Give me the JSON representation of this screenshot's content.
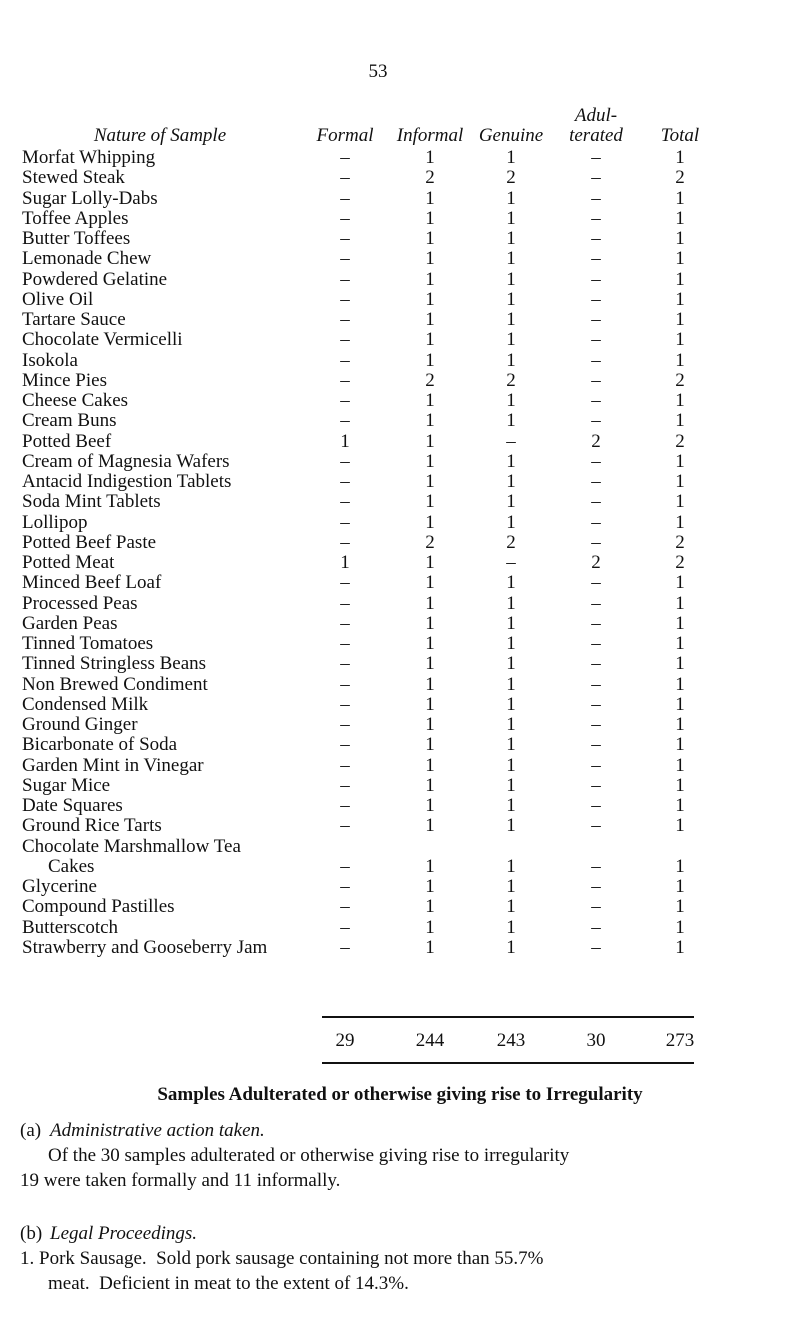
{
  "page_number": "53",
  "table": {
    "headers": [
      "Nature of Sample",
      "Formal",
      "Informal",
      "Genuine",
      [
        "Adul-",
        "terated"
      ],
      "Total"
    ],
    "rows": [
      [
        "Morfat Whipping",
        "–",
        1,
        1,
        "–",
        1
      ],
      [
        "Stewed Steak",
        "–",
        2,
        2,
        "–",
        2
      ],
      [
        "Sugar Lolly-Dabs",
        "–",
        1,
        1,
        "–",
        1
      ],
      [
        "Toffee Apples",
        "–",
        1,
        1,
        "–",
        1
      ],
      [
        "Butter Toffees",
        "–",
        1,
        1,
        "–",
        1
      ],
      [
        "Lemonade Chew",
        "–",
        1,
        1,
        "–",
        1
      ],
      [
        "Powdered Gelatine",
        "–",
        1,
        1,
        "–",
        1
      ],
      [
        "Olive Oil",
        "–",
        1,
        1,
        "–",
        1
      ],
      [
        "Tartare Sauce",
        "–",
        1,
        1,
        "–",
        1
      ],
      [
        "Chocolate Vermicelli",
        "–",
        1,
        1,
        "–",
        1
      ],
      [
        "Isokola",
        "–",
        1,
        1,
        "–",
        1
      ],
      [
        "Mince Pies",
        "–",
        2,
        2,
        "–",
        2
      ],
      [
        "Cheese Cakes",
        "–",
        1,
        1,
        "–",
        1
      ],
      [
        "Cream Buns",
        "–",
        1,
        1,
        "–",
        1
      ],
      [
        "Potted Beef",
        1,
        1,
        "–",
        2,
        2
      ],
      [
        "Cream of Magnesia Wafers",
        "–",
        1,
        1,
        "–",
        1
      ],
      [
        "Antacid Indigestion Tablets",
        "–",
        1,
        1,
        "–",
        1
      ],
      [
        "Soda Mint Tablets",
        "–",
        1,
        1,
        "–",
        1
      ],
      [
        "Lollipop",
        "–",
        1,
        1,
        "–",
        1
      ],
      [
        "Potted Beef Paste",
        "–",
        2,
        2,
        "–",
        2
      ],
      [
        "Potted Meat",
        1,
        1,
        "–",
        2,
        2
      ],
      [
        "Minced Beef Loaf",
        "–",
        1,
        1,
        "–",
        1
      ],
      [
        "Processed Peas",
        "–",
        1,
        1,
        "–",
        1
      ],
      [
        "Garden Peas",
        "–",
        1,
        1,
        "–",
        1
      ],
      [
        "Tinned Tomatoes",
        "–",
        1,
        1,
        "–",
        1
      ],
      [
        "Tinned Stringless Beans",
        "–",
        1,
        1,
        "–",
        1
      ],
      [
        "Non Brewed Condiment",
        "–",
        1,
        1,
        "–",
        1
      ],
      [
        "Condensed Milk",
        "–",
        1,
        1,
        "–",
        1
      ],
      [
        "Ground Ginger",
        "–",
        1,
        1,
        "–",
        1
      ],
      [
        "Bicarbonate of Soda",
        "–",
        1,
        1,
        "–",
        1
      ],
      [
        "Garden Mint in Vinegar",
        "–",
        1,
        1,
        "–",
        1
      ],
      [
        "Sugar Mice",
        "–",
        1,
        1,
        "–",
        1
      ],
      [
        "Date Squares",
        "–",
        1,
        1,
        "–",
        1
      ],
      [
        "Ground Rice Tarts",
        "–",
        1,
        1,
        "–",
        1
      ],
      [
        [
          "Chocolate Marshmallow Tea",
          "Cakes"
        ],
        "–",
        1,
        1,
        "–",
        1
      ],
      [
        "Glycerine",
        "–",
        1,
        1,
        "–",
        1
      ],
      [
        "Compound Pastilles",
        "–",
        1,
        1,
        "–",
        1
      ],
      [
        "Butterscotch",
        "–",
        1,
        1,
        "–",
        1
      ],
      [
        "Strawberry and Gooseberry Jam",
        "–",
        1,
        1,
        "–",
        1
      ]
    ],
    "totals": [
      29,
      244,
      243,
      30,
      273
    ]
  },
  "section": {
    "heading": "Samples Adulterated or otherwise giving rise to Irregularity",
    "items": [
      {
        "label": "(a)",
        "title": "Administrative action taken.",
        "lines": [
          "Of the 30 samples adulterated or otherwise giving rise to irregularity",
          "19 were taken formally and 11 informally."
        ]
      },
      {
        "label": "(b)",
        "title": "Legal Proceedings.",
        "lines": [
          "1. Pork Sausage.  Sold pork sausage containing not more than 55.7%",
          "meat.  Deficient in meat to the extent of 14.3%."
        ]
      }
    ]
  }
}
